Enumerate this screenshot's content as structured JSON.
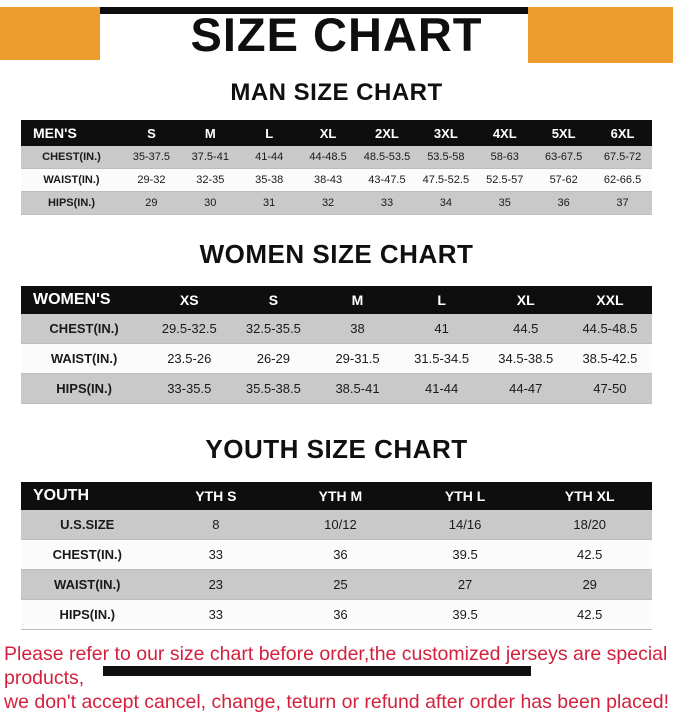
{
  "title": "SIZE CHART",
  "sections": [
    {
      "heading": "MAN SIZE CHART",
      "table": {
        "name": "mens",
        "header": [
          "MEN'S",
          "S",
          "M",
          "L",
          "XL",
          "2XL",
          "3XL",
          "4XL",
          "5XL",
          "6XL"
        ],
        "rows": [
          [
            "CHEST(IN.)",
            "35-37.5",
            "37.5-41",
            "41-44",
            "44-48.5",
            "48.5-53.5",
            "53.5-58",
            "58-63",
            "63-67.5",
            "67.5-72"
          ],
          [
            "WAIST(IN.)",
            "29-32",
            "32-35",
            "35-38",
            "38-43",
            "43-47.5",
            "47.5-52.5",
            "52.5-57",
            "57-62",
            "62-66.5"
          ],
          [
            "HIPS(IN.)",
            "29",
            "30",
            "31",
            "32",
            "33",
            "34",
            "35",
            "36",
            "37"
          ]
        ]
      }
    },
    {
      "heading": "WOMEN SIZE CHART",
      "table": {
        "name": "womens",
        "header": [
          "WOMEN'S",
          "XS",
          "S",
          "M",
          "L",
          "XL",
          "XXL"
        ],
        "rows": [
          [
            "CHEST(IN.)",
            "29.5-32.5",
            "32.5-35.5",
            "38",
            "41",
            "44.5",
            "44.5-48.5"
          ],
          [
            "WAIST(IN.)",
            "23.5-26",
            "26-29",
            "29-31.5",
            "31.5-34.5",
            "34.5-38.5",
            "38.5-42.5"
          ],
          [
            "HIPS(IN.)",
            "33-35.5",
            "35.5-38.5",
            "38.5-41",
            "41-44",
            "44-47",
            "47-50"
          ]
        ]
      }
    },
    {
      "heading": "YOUTH SIZE CHART",
      "table": {
        "name": "youth",
        "header": [
          "YOUTH",
          "YTH S",
          "YTH M",
          "YTH L",
          "YTH XL"
        ],
        "rows": [
          [
            "U.S.SIZE",
            "8",
            "10/12",
            "14/16",
            "18/20"
          ],
          [
            "CHEST(IN.)",
            "33",
            "36",
            "39.5",
            "42.5"
          ],
          [
            "WAIST(IN.)",
            "23",
            "25",
            "27",
            "29"
          ],
          [
            "HIPS(IN.)",
            "33",
            "36",
            "39.5",
            "42.5"
          ]
        ]
      }
    }
  ],
  "footer": {
    "line1": "Please refer to our size chart before order,the customized jerseys are special products,",
    "line2": "we don't accept cancel, change, teturn or refund after order has been placed!"
  },
  "colors": {
    "accent_orange": "#ED9C2E",
    "footer_red": "#D3213D",
    "header_black": "#0E0E0E",
    "row_gray": "#C9C9C9"
  }
}
